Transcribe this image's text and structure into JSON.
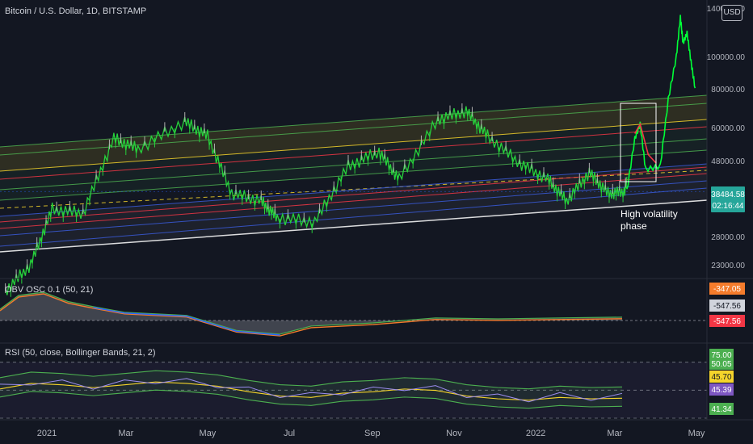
{
  "chart_data": [
    {
      "type": "candlestick",
      "title": "Bitcoin / U.S. Dollar, 1D, BITSTAMP",
      "currency_badge": "USD",
      "y_tick_labels": [
        "140000.00",
        "100000.00",
        "80000.00",
        "60000.00",
        "48000.00",
        "38484.58",
        "28000.00",
        "23000.00"
      ],
      "last_price": "38484.58",
      "countdown": "02:16:44",
      "x_tick_labels": [
        "2021",
        "Mar",
        "May",
        "Jul",
        "Sep",
        "Nov",
        "2022",
        "Mar",
        "May"
      ],
      "annotation": "High volatility phase",
      "price_series": {
        "x": [
          "2020-12-01",
          "2020-12-20",
          "2021-01-05",
          "2021-01-28",
          "2021-02-20",
          "2021-03-10",
          "2021-04-14",
          "2021-05-01",
          "2021-05-19",
          "2021-06-10",
          "2021-06-22",
          "2021-07-20",
          "2021-08-14",
          "2021-09-06",
          "2021-09-21",
          "2021-10-20",
          "2021-11-10",
          "2021-11-26",
          "2021-12-20",
          "2022-01-10",
          "2022-01-24",
          "2022-02-10",
          "2022-02-24",
          "2022-03-08",
          "2022-03-15",
          "2022-03-28",
          "2022-04-05",
          "2022-04-10"
        ],
        "y": [
          19000,
          23000,
          34000,
          33000,
          56000,
          52000,
          63000,
          57000,
          38000,
          36000,
          32000,
          31000,
          46000,
          51000,
          42000,
          64000,
          68000,
          57000,
          47000,
          42000,
          36000,
          44000,
          38000,
          38484,
          48000,
          47000,
          100000,
          80000
        ]
      },
      "projection_series": {
        "x": [
          "2022-03-10",
          "2022-03-16",
          "2022-03-20",
          "2022-03-24",
          "2022-04-04",
          "2022-04-10",
          "2022-04-16",
          "2022-04-19",
          "2022-04-21",
          "2022-04-24",
          "2022-04-27",
          "2022-04-30"
        ],
        "y": [
          38484,
          56000,
          62000,
          45000,
          46000,
          74000,
          100000,
          132000,
          110000,
          118000,
          96000,
          80000
        ]
      },
      "red_series": {
        "x": [
          "2022-03-16",
          "2022-03-20",
          "2022-03-26",
          "2022-04-01"
        ],
        "y": [
          58000,
          62000,
          50000,
          47000
        ]
      }
    },
    {
      "type": "line",
      "title": "OBV OSC 0.1 (50, 21)",
      "value_labels": [
        "-347.05",
        "-547.56",
        "-547.56"
      ],
      "label_colors": [
        "#f57c2c",
        "#d1d4dc",
        "#f23645"
      ],
      "series": [
        {
          "x": [
            0,
            0.03,
            0.07,
            0.11,
            0.15,
            0.2,
            0.3,
            0.38,
            0.45,
            0.5,
            0.6,
            0.7,
            0.8,
            0.9,
            1
          ],
          "values": [
            -420,
            -200,
            -150,
            -300,
            -380,
            -470,
            -520,
            -760,
            -820,
            -690,
            -640,
            -560,
            -575,
            -560,
            -547
          ]
        }
      ]
    },
    {
      "type": "line",
      "title": "RSI (50, close, Bollinger Bands, 21, 2)",
      "y_tick_labels": [
        "75.00",
        "50.05",
        "45.70",
        "45.39",
        "41.34"
      ],
      "label_colors": [
        "#4caf50",
        "#4caf50",
        "#f5d42b",
        "#7e57c2",
        "#4caf50"
      ],
      "series": [
        {
          "x": [
            0,
            0.05,
            0.1,
            0.15,
            0.2,
            0.25,
            0.3,
            0.35,
            0.4,
            0.45,
            0.5,
            0.55,
            0.6,
            0.65,
            0.7,
            0.75,
            0.8,
            0.85,
            0.9,
            0.95,
            1
          ],
          "values": [
            52,
            56,
            55,
            53,
            55,
            57,
            56,
            54,
            50,
            47,
            46,
            49,
            50,
            52,
            51,
            47,
            45,
            44,
            46,
            45,
            45.4
          ]
        }
      ]
    }
  ]
}
